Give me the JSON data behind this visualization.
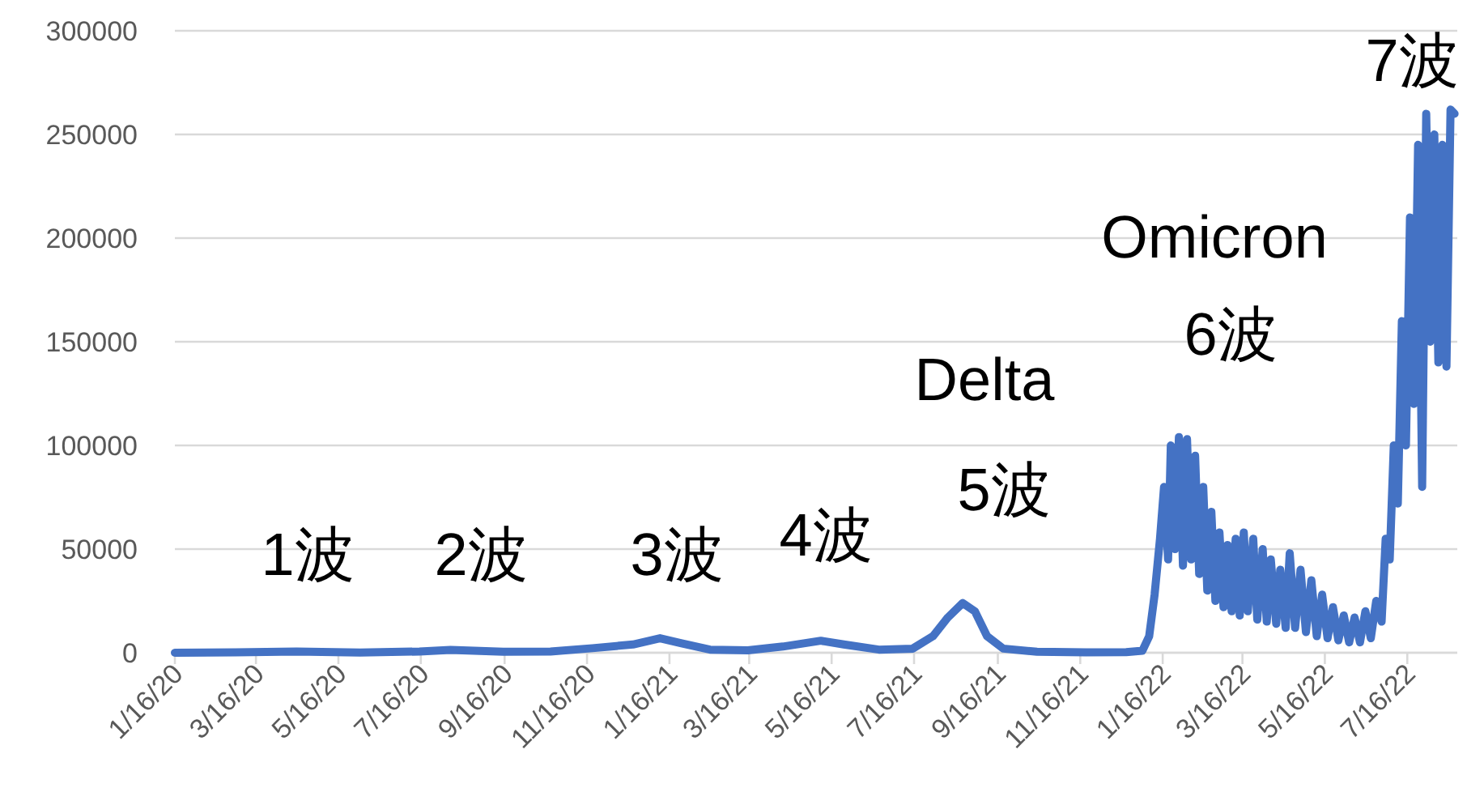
{
  "chart_data": {
    "type": "line",
    "color": "#4472c4",
    "marker": "none",
    "line_style": "solid",
    "grid": "y",
    "x": [
      "2020-01-16",
      "2020-03-01",
      "2020-04-15",
      "2020-06-01",
      "2020-07-15",
      "2020-08-07",
      "2020-09-15",
      "2020-10-20",
      "2020-11-20",
      "2020-12-20",
      "2021-01-09",
      "2021-01-25",
      "2021-02-15",
      "2021-03-15",
      "2021-04-10",
      "2021-05-08",
      "2021-05-25",
      "2021-06-20",
      "2021-07-15",
      "2021-07-30",
      "2021-08-10",
      "2021-08-21",
      "2021-08-30",
      "2021-09-08",
      "2021-09-20",
      "2021-10-15",
      "2021-11-20",
      "2021-12-20",
      "2022-01-01",
      "2022-01-06",
      "2022-01-10",
      "2022-01-14",
      "2022-01-17",
      "2022-01-20",
      "2022-01-22",
      "2022-01-25",
      "2022-01-28",
      "2022-01-31",
      "2022-02-03",
      "2022-02-06",
      "2022-02-09",
      "2022-02-12",
      "2022-02-15",
      "2022-02-18",
      "2022-02-21",
      "2022-02-24",
      "2022-02-27",
      "2022-03-02",
      "2022-03-05",
      "2022-03-08",
      "2022-03-11",
      "2022-03-14",
      "2022-03-17",
      "2022-03-20",
      "2022-03-24",
      "2022-03-27",
      "2022-03-31",
      "2022-04-03",
      "2022-04-06",
      "2022-04-10",
      "2022-04-13",
      "2022-04-17",
      "2022-04-20",
      "2022-04-24",
      "2022-04-28",
      "2022-05-02",
      "2022-05-06",
      "2022-05-10",
      "2022-05-14",
      "2022-05-18",
      "2022-05-22",
      "2022-05-26",
      "2022-05-30",
      "2022-06-03",
      "2022-06-07",
      "2022-06-11",
      "2022-06-15",
      "2022-06-19",
      "2022-06-23",
      "2022-06-27",
      "2022-06-30",
      "2022-07-03",
      "2022-07-06",
      "2022-07-09",
      "2022-07-12",
      "2022-07-15",
      "2022-07-18",
      "2022-07-21",
      "2022-07-24",
      "2022-07-27",
      "2022-07-30",
      "2022-08-02",
      "2022-08-05",
      "2022-08-08",
      "2022-08-11",
      "2022-08-14",
      "2022-08-17",
      "2022-08-20"
    ],
    "values": [
      0,
      200,
      600,
      100,
      600,
      1400,
      500,
      600,
      2200,
      4000,
      7000,
      4500,
      1500,
      1200,
      3000,
      5800,
      4000,
      1500,
      2000,
      8000,
      17000,
      24000,
      20000,
      8000,
      2000,
      500,
      200,
      300,
      1000,
      8000,
      28000,
      55000,
      80000,
      45000,
      100000,
      50000,
      104000,
      42000,
      103000,
      45000,
      95000,
      38000,
      80000,
      30000,
      68000,
      25000,
      58000,
      22000,
      52000,
      20000,
      55000,
      18000,
      58000,
      20000,
      55000,
      16000,
      50000,
      15000,
      45000,
      14000,
      40000,
      12000,
      48000,
      12000,
      40000,
      10000,
      35000,
      8000,
      28000,
      7000,
      22000,
      6000,
      18000,
      5000,
      17000,
      5000,
      20000,
      7000,
      25000,
      15000,
      55000,
      45000,
      100000,
      72000,
      160000,
      100000,
      210000,
      120000,
      245000,
      80000,
      260000,
      150000,
      250000,
      140000,
      245000,
      138000,
      262000,
      260000
    ],
    "xlim": [
      "2020-01-16",
      "2022-08-22"
    ],
    "xticks": [
      {
        "value": "2020-01-16",
        "label": "1/16/20"
      },
      {
        "value": "2020-03-16",
        "label": "3/16/20"
      },
      {
        "value": "2020-05-16",
        "label": "5/16/20"
      },
      {
        "value": "2020-07-16",
        "label": "7/16/20"
      },
      {
        "value": "2020-09-16",
        "label": "9/16/20"
      },
      {
        "value": "2020-11-16",
        "label": "11/16/20"
      },
      {
        "value": "2021-01-16",
        "label": "1/16/21"
      },
      {
        "value": "2021-03-16",
        "label": "3/16/21"
      },
      {
        "value": "2021-05-16",
        "label": "5/16/21"
      },
      {
        "value": "2021-07-16",
        "label": "7/16/21"
      },
      {
        "value": "2021-09-16",
        "label": "9/16/21"
      },
      {
        "value": "2021-11-16",
        "label": "11/16/21"
      },
      {
        "value": "2022-01-16",
        "label": "1/16/22"
      },
      {
        "value": "2022-03-16",
        "label": "3/16/22"
      },
      {
        "value": "2022-05-16",
        "label": "5/16/22"
      },
      {
        "value": "2022-07-16",
        "label": "7/16/22"
      }
    ],
    "ylim": [
      0,
      300000
    ],
    "yticks": [
      0,
      50000,
      100000,
      150000,
      200000,
      250000,
      300000
    ],
    "annotations": [
      "1波",
      "2波",
      "3波",
      "4波",
      "Delta",
      "5波",
      "Omicron",
      "6波",
      "7波"
    ]
  }
}
